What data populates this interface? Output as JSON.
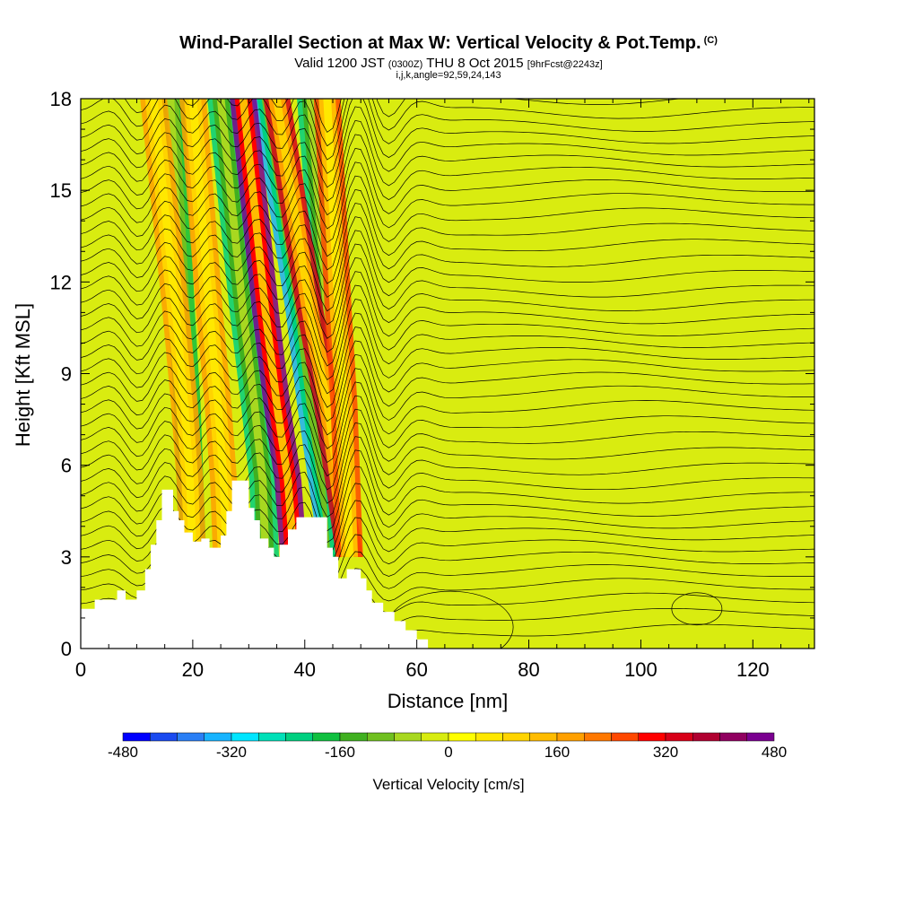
{
  "header": {
    "title": "Wind-Parallel Section at Max W: Vertical Velocity & Pot.Temp.",
    "title_mark": "(C)",
    "valid_prefix": "Valid 1200 JST",
    "valid_utc": "(0300Z)",
    "valid_date": "THU 8 Oct 2015",
    "forecast": "[9hrFcst@2243z]",
    "params": "i,j,k,angle=92,59,24,143"
  },
  "chart_data": {
    "type": "heatmap",
    "xlabel": "Distance [nm]",
    "ylabel": "Height [Kft MSL]",
    "xlim": [
      0,
      131
    ],
    "ylim": [
      0,
      18
    ],
    "x_ticks": [
      0,
      20,
      40,
      60,
      80,
      100,
      120
    ],
    "y_ticks": [
      0,
      3,
      6,
      9,
      12,
      15,
      18
    ],
    "terrain": [
      [
        0,
        1.3
      ],
      [
        2.5,
        1.3
      ],
      [
        2.5,
        1.6
      ],
      [
        6.5,
        1.6
      ],
      [
        6.5,
        1.9
      ],
      [
        8,
        1.9
      ],
      [
        8,
        1.6
      ],
      [
        10,
        1.6
      ],
      [
        10,
        1.9
      ],
      [
        11.5,
        1.9
      ],
      [
        11.5,
        2.6
      ],
      [
        12.5,
        2.6
      ],
      [
        12.5,
        3.4
      ],
      [
        13.5,
        3.4
      ],
      [
        13.5,
        4.2
      ],
      [
        14.5,
        4.2
      ],
      [
        14.5,
        5.2
      ],
      [
        16.5,
        5.2
      ],
      [
        16.5,
        4.5
      ],
      [
        17.5,
        4.5
      ],
      [
        17.5,
        4.2
      ],
      [
        18.5,
        4.2
      ],
      [
        18.5,
        3.8
      ],
      [
        20,
        3.8
      ],
      [
        20,
        3.5
      ],
      [
        21.5,
        3.5
      ],
      [
        21.5,
        3.6
      ],
      [
        23,
        3.6
      ],
      [
        23,
        3.3
      ],
      [
        25,
        3.3
      ],
      [
        25,
        3.7
      ],
      [
        26,
        3.7
      ],
      [
        26,
        4.5
      ],
      [
        27,
        4.5
      ],
      [
        27,
        5.5
      ],
      [
        30,
        5.5
      ],
      [
        30,
        4.6
      ],
      [
        31,
        4.6
      ],
      [
        31,
        4.2
      ],
      [
        32,
        4.2
      ],
      [
        32,
        3.6
      ],
      [
        33.5,
        3.6
      ],
      [
        33.5,
        3.3
      ],
      [
        34.5,
        3.3
      ],
      [
        34.5,
        3.0
      ],
      [
        35.5,
        3.0
      ],
      [
        35.5,
        3.4
      ],
      [
        37,
        3.4
      ],
      [
        37,
        3.9
      ],
      [
        38.5,
        3.9
      ],
      [
        38.5,
        4.3
      ],
      [
        44,
        4.3
      ],
      [
        44,
        3.3
      ],
      [
        45,
        3.3
      ],
      [
        45,
        3.0
      ],
      [
        46,
        3.0
      ],
      [
        46,
        2.3
      ],
      [
        47.5,
        2.3
      ],
      [
        47.5,
        2.6
      ],
      [
        50,
        2.6
      ],
      [
        50,
        2.3
      ],
      [
        51,
        2.3
      ],
      [
        51,
        1.9
      ],
      [
        52,
        1.9
      ],
      [
        52,
        1.5
      ],
      [
        54,
        1.5
      ],
      [
        54,
        1.2
      ],
      [
        56,
        1.2
      ],
      [
        56,
        0.9
      ],
      [
        58,
        0.9
      ],
      [
        58,
        0.6
      ],
      [
        60,
        0.6
      ],
      [
        60,
        0.3
      ],
      [
        62,
        0.3
      ],
      [
        62,
        0
      ],
      [
        131,
        0
      ]
    ],
    "updrafts": [
      {
        "x": [
          35,
          38,
          41,
          44,
          46,
          48
        ],
        "w": 320
      },
      {
        "x": [
          29,
          31,
          33,
          35,
          37,
          38
        ],
        "w": 480
      },
      {
        "x": [
          13,
          15,
          17,
          18.5,
          19.5,
          20
        ],
        "w": 160
      },
      {
        "x": [
          20,
          21.5,
          23,
          24.5,
          25.5,
          26
        ],
        "w": 160
      },
      {
        "x": [
          44,
          45,
          46,
          47,
          47.5,
          48
        ],
        "w": 240
      }
    ],
    "downdrafts": [
      {
        "x": [
          16,
          17,
          18,
          19,
          19.5,
          20
        ],
        "w": -200
      },
      {
        "x": [
          25,
          27,
          29,
          31,
          32.5,
          33
        ],
        "w": -240
      },
      {
        "x": [
          33,
          36,
          39,
          41,
          43,
          45
        ],
        "w": -360
      },
      {
        "x": [
          41,
          42.5,
          44,
          45,
          46,
          47
        ],
        "w": -240
      }
    ],
    "colorbar": {
      "label": "Vertical Velocity [cm/s]",
      "min": -480,
      "max": 480,
      "step": 40,
      "tick_labels": [
        "-480",
        "-320",
        "-160",
        "0",
        "160",
        "320",
        "480"
      ],
      "colors": [
        "#0000ff",
        "#1a4af0",
        "#2a7ff5",
        "#18b4ff",
        "#00e5ff",
        "#00e0b8",
        "#00d080",
        "#10c040",
        "#40b020",
        "#70c020",
        "#a8d820",
        "#d8ec10",
        "#ffff00",
        "#ffe800",
        "#ffd400",
        "#ffbc00",
        "#ffa000",
        "#ff7800",
        "#ff4800",
        "#ff0000",
        "#d80018",
        "#b00030",
        "#900060",
        "#7a0090"
      ]
    }
  }
}
